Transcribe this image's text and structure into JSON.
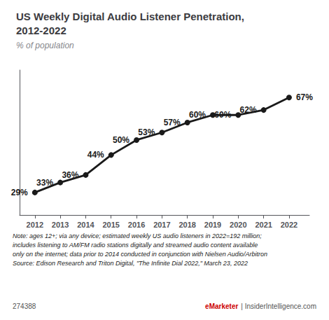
{
  "chart_data": {
    "type": "line",
    "title": "US Weekly Digital Audio Listener Penetration,\n2012-2022",
    "subtitle": "% of population",
    "x": [
      2012,
      2013,
      2014,
      2015,
      2016,
      2017,
      2018,
      2019,
      2020,
      2021,
      2022
    ],
    "values": [
      29,
      33,
      36,
      44,
      50,
      53,
      57,
      60,
      60,
      62,
      67
    ],
    "value_labels": [
      "29%",
      "33%",
      "36%",
      "44%",
      "50%",
      "53%",
      "57%",
      "60%",
      "60%",
      "62%",
      "67%"
    ],
    "data_labels": true,
    "color": "#1a1a1a",
    "marker": "circle",
    "xlim": [
      2011.4,
      2022.8
    ],
    "xticks": [
      2012,
      2013,
      2014,
      2015,
      2016,
      2017,
      2018,
      2019,
      2020,
      2021,
      2022
    ],
    "ylim": [
      20,
      78
    ],
    "tick_labels": "x",
    "grid": false,
    "annotations": [
      "Note: ages 12+; via any device; estimated weekly US audio listeners in 2022=192 million;\nincludes listening to AM/FM radio stations digitally and streamed audio content available\nonly on the internet; data prior to 2014 conducted in conjunction with Nielsen Audio/Arbitron\nSource: Edison Research and Triton Digital, \"The Infinite Dial 2022,\" March 23, 2022",
      "274388",
      "eMarketer",
      "| InsiderIntelligence.com"
    ]
  }
}
